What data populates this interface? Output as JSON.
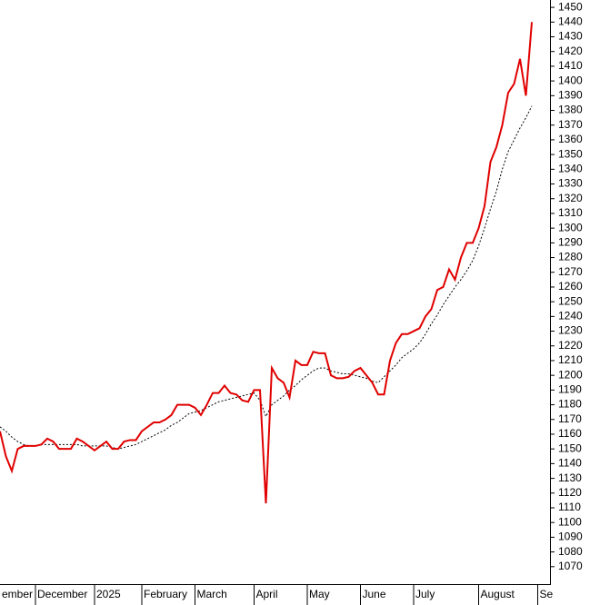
{
  "chart_data": {
    "type": "line",
    "categories": [
      "ember",
      null,
      null,
      null,
      null,
      null,
      "December",
      null,
      null,
      null,
      null,
      null,
      null,
      null,
      null,
      null,
      "2025",
      null,
      null,
      null,
      null,
      null,
      null,
      null,
      "February",
      null,
      null,
      null,
      null,
      null,
      null,
      null,
      null,
      "March",
      null,
      null,
      null,
      null,
      null,
      null,
      null,
      null,
      null,
      "April",
      null,
      null,
      null,
      null,
      null,
      null,
      null,
      null,
      "May",
      null,
      null,
      null,
      null,
      null,
      null,
      null,
      null,
      "June",
      null,
      null,
      null,
      null,
      null,
      null,
      null,
      null,
      "July",
      null,
      null,
      null,
      null,
      null,
      null,
      null,
      null,
      null,
      null,
      "August",
      null,
      null,
      null,
      null,
      null,
      null,
      null,
      null,
      null,
      "Se"
    ],
    "series": [
      {
        "color": "#e00000",
        "style": "solid",
        "values": [
          1162,
          1145,
          1135,
          1150,
          1152,
          1152,
          1152,
          1153,
          1157,
          1155,
          1150,
          1150,
          1150,
          1157,
          1155,
          1152,
          1149,
          1152,
          1155,
          1150,
          1150,
          1155,
          1156,
          1156,
          1162,
          1165,
          1168,
          1168,
          1170,
          1173,
          1180,
          1180,
          1180,
          1178,
          1173,
          1180,
          1188,
          1188,
          1193,
          1188,
          1187,
          1183,
          1182,
          1190,
          1190,
          1113,
          1205,
          1198,
          1195,
          1185,
          1210,
          1207,
          1207,
          1216,
          1215,
          1215,
          1200,
          1198,
          1198,
          1199,
          1203,
          1205,
          1200,
          1195,
          1187,
          1187,
          1210,
          1222,
          1228,
          1228,
          1230,
          1232,
          1240,
          1245,
          1258,
          1260,
          1272,
          1265,
          1280,
          1290,
          1290,
          1300,
          1315,
          1345,
          1355,
          1370,
          1392,
          1398,
          1415,
          1390,
          1440,
          null
        ]
      },
      {
        "color": "#000000",
        "style": "dotted",
        "values": [
          1165,
          1162,
          1158,
          1155,
          1153,
          1152,
          1152,
          1153,
          1153,
          1153,
          1153,
          1153,
          1153,
          1153,
          1152,
          1152,
          1152,
          1152,
          1152,
          1151,
          1150,
          1151,
          1152,
          1153,
          1155,
          1157,
          1159,
          1161,
          1163,
          1166,
          1168,
          1171,
          1174,
          1175,
          1176,
          1178,
          1180,
          1182,
          1183,
          1184,
          1185,
          1186,
          1187,
          1188,
          1183,
          1172,
          1180,
          1183,
          1186,
          1190,
          1193,
          1197,
          1200,
          1203,
          1205,
          1205,
          1203,
          1202,
          1201,
          1201,
          1200,
          1199,
          1198,
          1196,
          1195,
          1199,
          1203,
          1207,
          1212,
          1215,
          1218,
          1222,
          1228,
          1235,
          1241,
          1248,
          1254,
          1260,
          1265,
          1271,
          1278,
          1288,
          1300,
          1313,
          1325,
          1340,
          1352,
          1360,
          1368,
          1375,
          1383,
          null
        ]
      }
    ],
    "ylim": [
      1060,
      1455
    ],
    "yticks": [
      1070,
      1080,
      1090,
      1100,
      1110,
      1120,
      1130,
      1140,
      1150,
      1160,
      1170,
      1180,
      1190,
      1200,
      1210,
      1220,
      1230,
      1240,
      1250,
      1260,
      1270,
      1280,
      1290,
      1300,
      1310,
      1320,
      1330,
      1340,
      1350,
      1360,
      1370,
      1380,
      1390,
      1400,
      1410,
      1420,
      1430,
      1440,
      1450
    ],
    "grid": false
  }
}
